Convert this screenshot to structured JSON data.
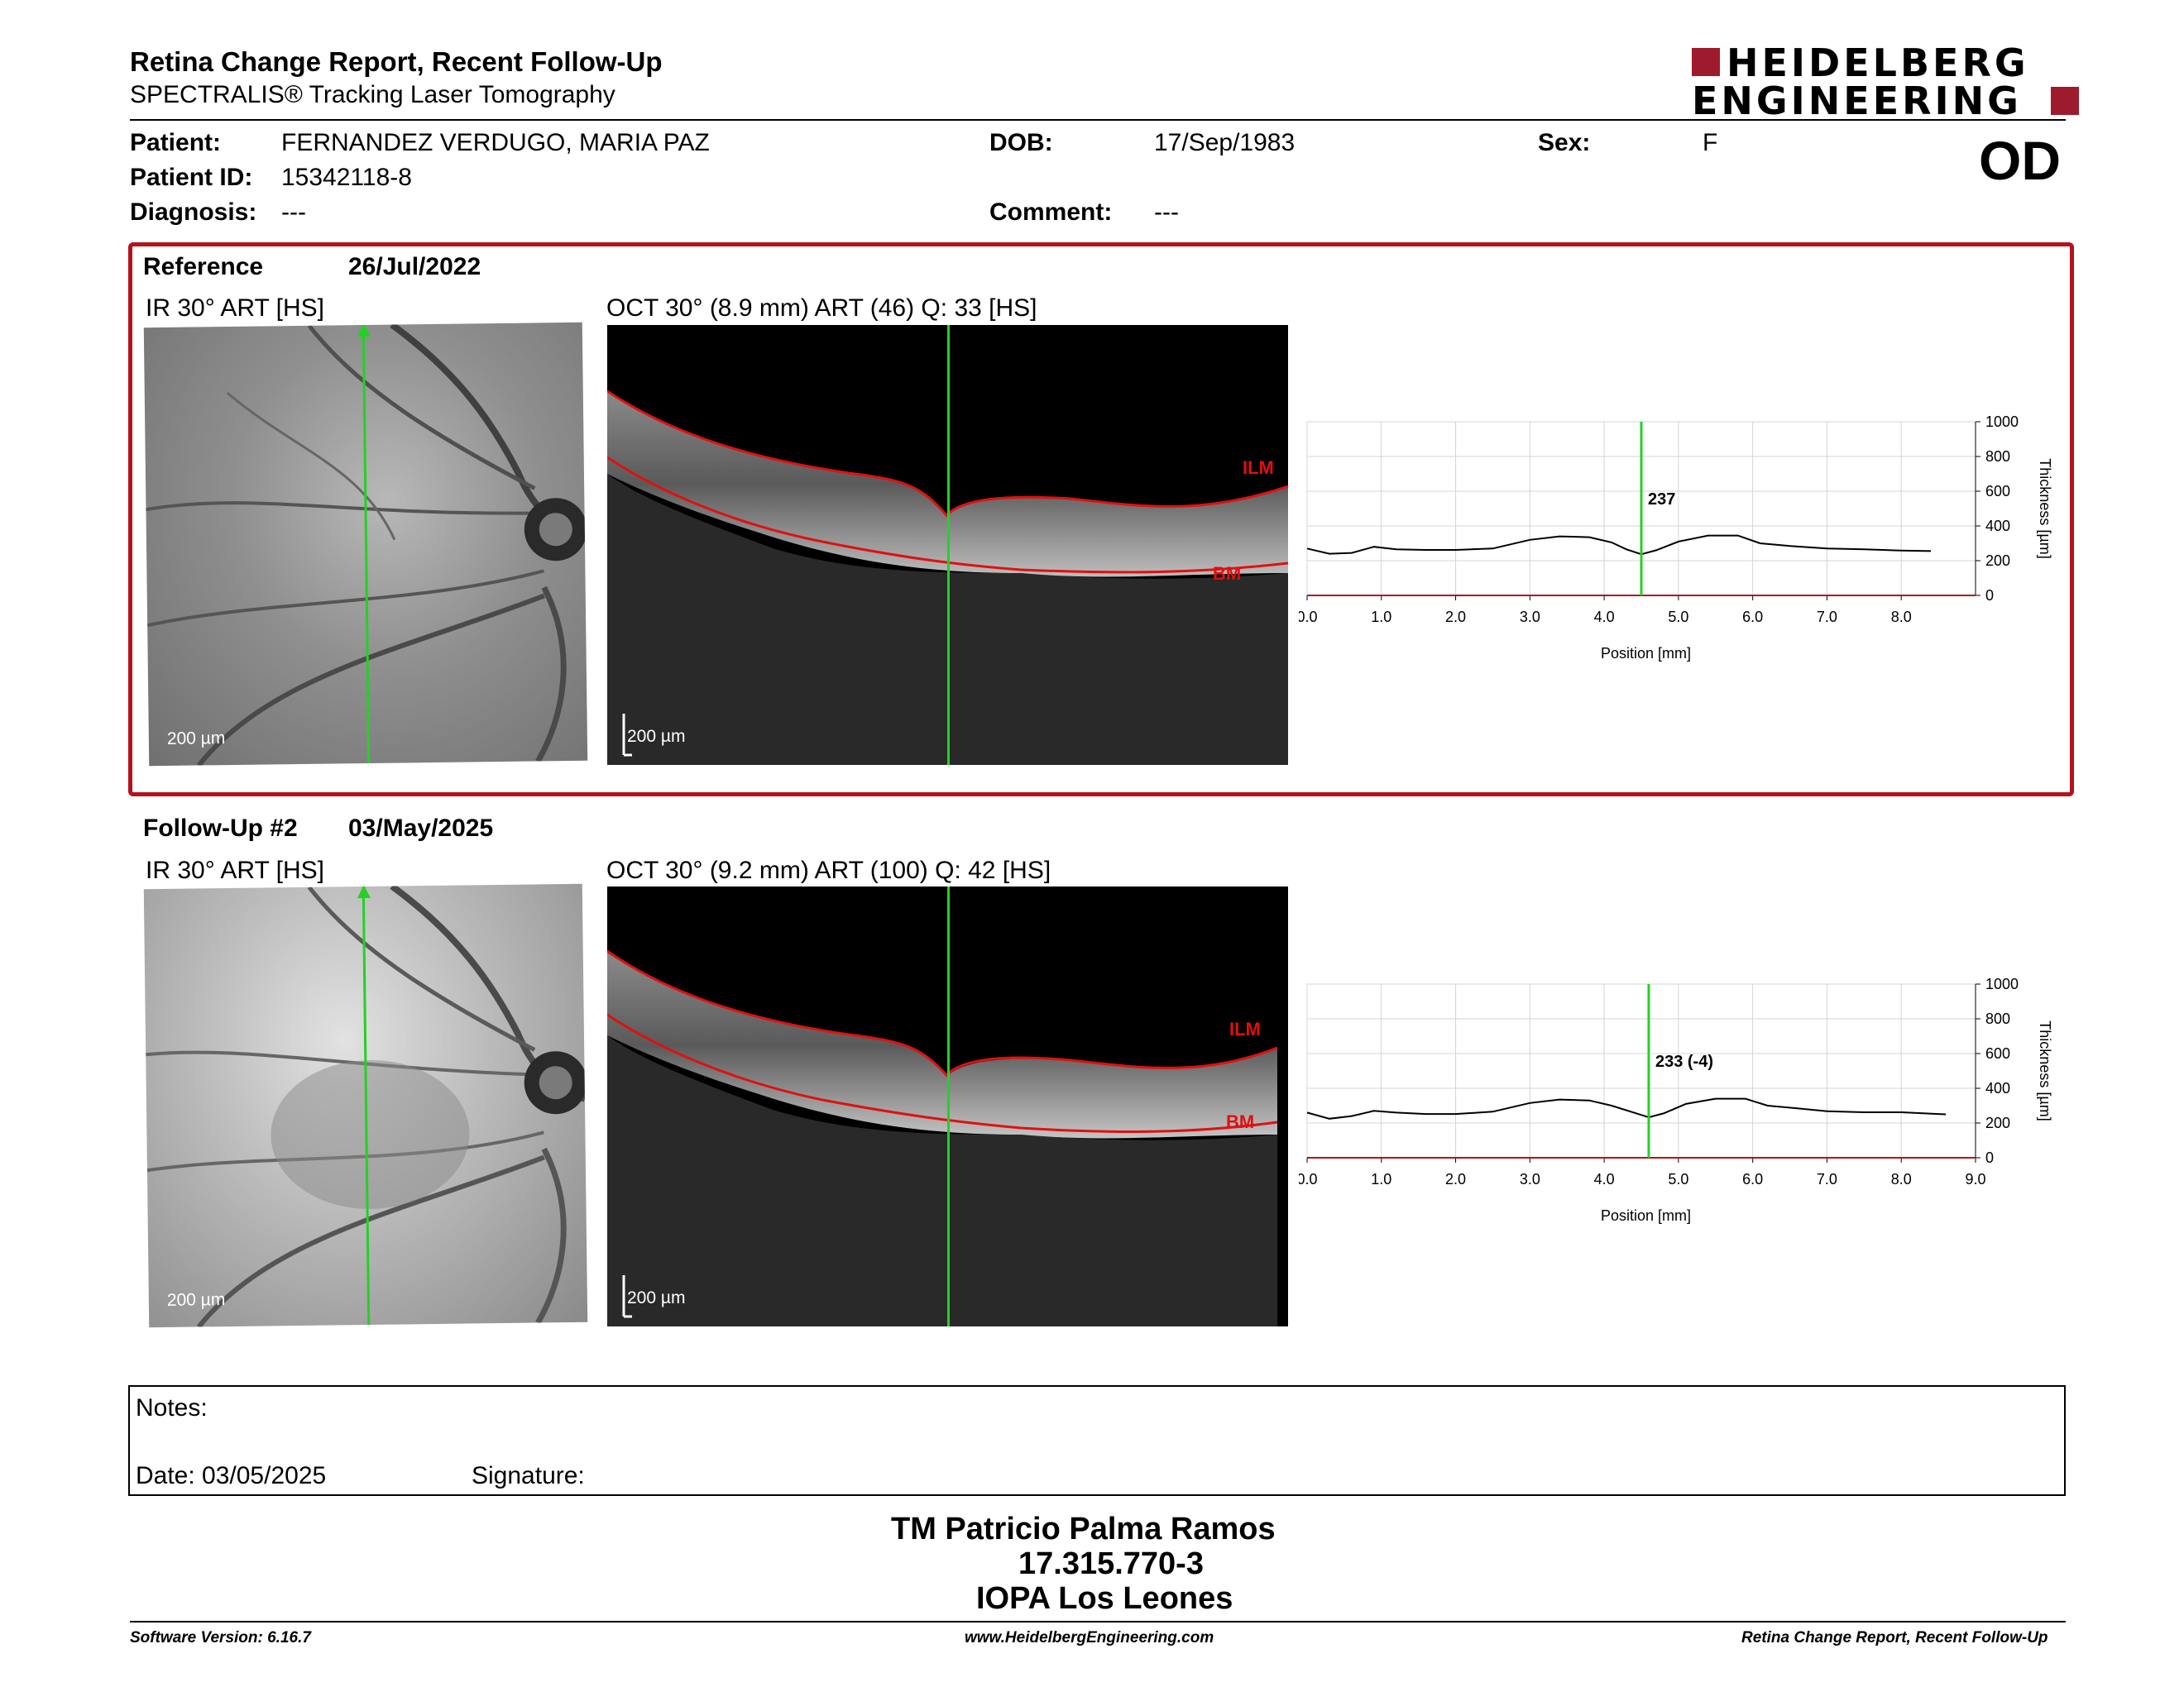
{
  "header": {
    "title": "Retina Change Report, Recent Follow-Up",
    "subtitle": "SPECTRALIS® Tracking Laser Tomography",
    "logo_line1": "HEIDELBERG",
    "logo_line2": "ENGINEERING",
    "eye": "OD"
  },
  "patient": {
    "patient_label": "Patient:",
    "patient_value": "FERNANDEZ VERDUGO, MARIA PAZ",
    "dob_label": "DOB:",
    "dob_value": "17/Sep/1983",
    "sex_label": "Sex:",
    "sex_value": "F",
    "id_label": "Patient ID:",
    "id_value": "15342118-8",
    "diagnosis_label": "Diagnosis:",
    "diagnosis_value": "---",
    "comment_label": "Comment:",
    "comment_value": "---"
  },
  "reference": {
    "label": "Reference",
    "date": "26/Jul/2022",
    "ir_title": "IR 30° ART [HS]",
    "oct_title": "OCT 30° (8.9 mm) ART (46) Q: 33 [HS]",
    "ir_scale": "200 µm",
    "oct_scale": "200 µm",
    "ilm": "ILM",
    "bm": "BM"
  },
  "followup": {
    "label": "Follow-Up #2",
    "date": "03/May/2025",
    "ir_title": "IR 30° ART [HS]",
    "oct_title": "OCT 30° (9.2 mm) ART (100) Q: 42 [HS]",
    "ir_scale": "200 µm",
    "oct_scale": "200 µm",
    "ilm": "ILM",
    "bm": "BM"
  },
  "chart_data": [
    {
      "type": "line",
      "xlabel": "Position [mm]",
      "ylabel": "Thickness [µm]",
      "xlim": [
        0,
        9.0
      ],
      "ylim": [
        0,
        1000
      ],
      "x_ticks": [
        "0.0",
        "1.0",
        "2.0",
        "3.0",
        "4.0",
        "5.0",
        "6.0",
        "7.0",
        "8.0"
      ],
      "y_ticks": [
        "0",
        "200",
        "400",
        "600",
        "800",
        "1000"
      ],
      "marker_x": 4.5,
      "marker_label": "237",
      "series": [
        {
          "x": [
            0.0,
            0.3,
            0.6,
            0.9,
            1.2,
            1.6,
            2.0,
            2.5,
            3.0,
            3.4,
            3.8,
            4.1,
            4.3,
            4.5,
            4.7,
            5.0,
            5.4,
            5.8,
            6.1,
            6.5,
            7.0,
            7.5,
            8.0,
            8.4
          ],
          "y": [
            270,
            240,
            245,
            280,
            265,
            262,
            262,
            270,
            320,
            340,
            335,
            305,
            265,
            237,
            260,
            310,
            345,
            345,
            300,
            285,
            270,
            265,
            258,
            255
          ]
        }
      ]
    },
    {
      "type": "line",
      "xlabel": "Position [mm]",
      "ylabel": "Thickness [µm]",
      "xlim": [
        0,
        9.0
      ],
      "ylim": [
        0,
        1000
      ],
      "x_ticks": [
        "0.0",
        "1.0",
        "2.0",
        "3.0",
        "4.0",
        "5.0",
        "6.0",
        "7.0",
        "8.0",
        "9.0"
      ],
      "y_ticks": [
        "0",
        "200",
        "400",
        "600",
        "800",
        "1000"
      ],
      "marker_x": 4.6,
      "marker_label": "233 (-4)",
      "series": [
        {
          "x": [
            0.0,
            0.3,
            0.6,
            0.9,
            1.2,
            1.6,
            2.0,
            2.5,
            3.0,
            3.4,
            3.8,
            4.1,
            4.4,
            4.6,
            4.8,
            5.1,
            5.5,
            5.9,
            6.2,
            6.6,
            7.0,
            7.5,
            8.0,
            8.5,
            8.6
          ],
          "y": [
            260,
            225,
            240,
            270,
            260,
            252,
            252,
            265,
            315,
            335,
            330,
            300,
            260,
            233,
            255,
            310,
            340,
            340,
            300,
            285,
            268,
            262,
            262,
            252,
            250
          ]
        }
      ]
    }
  ],
  "notes": {
    "notes_label": "Notes:",
    "date_label": "Date: 03/05/2025",
    "signature_label": "Signature:"
  },
  "signatory": {
    "name": "TM Patricio Palma Ramos",
    "id": "17.315.770-3",
    "org": "IOPA Los Leones"
  },
  "footer": {
    "software": "Software Version: 6.16.7",
    "url": "www.HeidelbergEngineering.com",
    "report": "Retina Change Report, Recent Follow-Up"
  }
}
